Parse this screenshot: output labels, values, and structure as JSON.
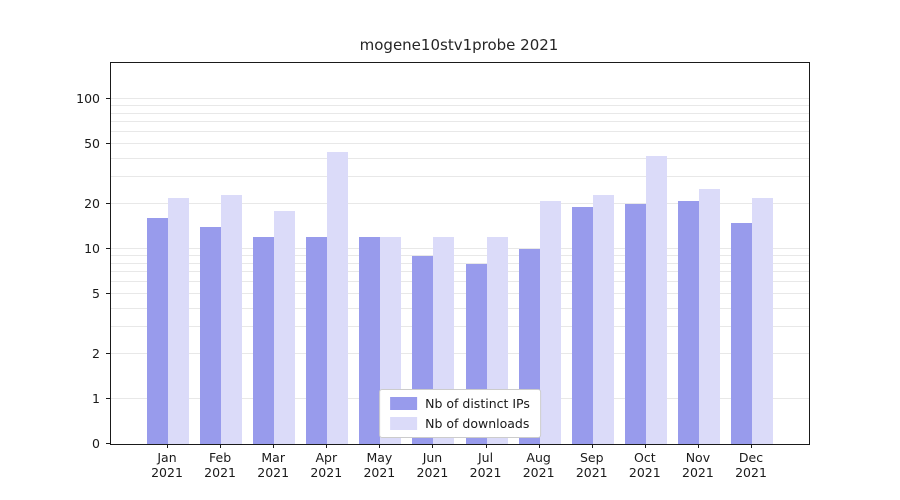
{
  "title": "mogene10stv1probe 2021",
  "colors": {
    "ips_bar": "#989bec",
    "downloads_bar": "#dbdbf9",
    "grid": "#e8e8e8",
    "axis": "#1a1a1a"
  },
  "legend": {
    "items": [
      {
        "label": "Nb of distinct IPs",
        "color": "#989bec"
      },
      {
        "label": "Nb of downloads",
        "color": "#dbdbf9"
      }
    ]
  },
  "axes": {
    "yticks": [
      0,
      1,
      2,
      5,
      10,
      20,
      50,
      100
    ],
    "months": [
      "Jan",
      "Feb",
      "Mar",
      "Apr",
      "May",
      "Jun",
      "Jul",
      "Aug",
      "Sep",
      "Oct",
      "Nov",
      "Dec"
    ],
    "year": "2021"
  },
  "chart_data": {
    "type": "bar",
    "title": "mogene10stv1probe 2021",
    "yscale": "symlog",
    "grid": true,
    "legend_position": "lower center",
    "ylim": [
      0,
      140
    ],
    "yticks": [
      0,
      1,
      2,
      5,
      10,
      20,
      50,
      100
    ],
    "categories": [
      "Jan 2021",
      "Feb 2021",
      "Mar 2021",
      "Apr 2021",
      "May 2021",
      "Jun 2021",
      "Jul 2021",
      "Aug 2021",
      "Sep 2021",
      "Oct 2021",
      "Nov 2021",
      "Dec 2021"
    ],
    "series": [
      {
        "name": "Nb of distinct IPs",
        "color": "#989bec",
        "values": [
          16,
          14,
          12,
          12,
          12,
          9,
          8,
          10,
          19,
          20,
          21,
          15
        ]
      },
      {
        "name": "Nb of downloads",
        "color": "#dbdbf9",
        "values": [
          22,
          23,
          18,
          44,
          12,
          12,
          12,
          21,
          23,
          42,
          25,
          22
        ]
      }
    ]
  }
}
